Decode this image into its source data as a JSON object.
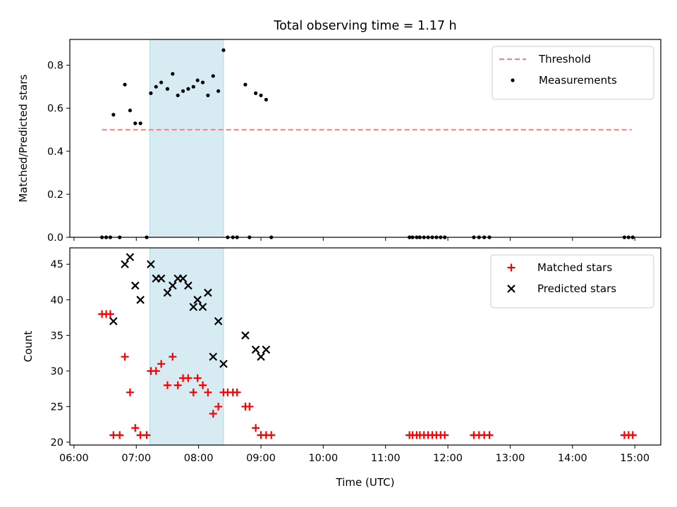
{
  "chart_data": {
    "title": "Total observing time = 1.17 h",
    "xlabel": "Time (UTC)",
    "xlim": [
      "05:56",
      "15:25"
    ],
    "xticks": [
      "06:00",
      "07:00",
      "08:00",
      "09:00",
      "10:00",
      "11:00",
      "12:00",
      "13:00",
      "14:00",
      "15:00"
    ],
    "shaded_span": {
      "x0": "07:13",
      "x1": "08:24",
      "color": "#add8e6"
    },
    "panels": [
      {
        "type": "scatter",
        "ylabel": "Matched/Predicted stars",
        "ylim": [
          0,
          0.92
        ],
        "yticks": [
          "0.0",
          "0.2",
          "0.4",
          "0.6",
          "0.8"
        ],
        "legend_position": "top-right",
        "threshold": {
          "name": "Threshold",
          "value": 0.5,
          "x_start": "06:27",
          "x_end": "14:57",
          "color": "#ff7f7f",
          "style": "dashed"
        },
        "series": [
          {
            "name": "Measurements",
            "color": "#000000",
            "marker": "dot",
            "points": [
              [
                "06:27",
                0
              ],
              [
                "06:31",
                0
              ],
              [
                "06:35",
                0
              ],
              [
                "06:38",
                0.57
              ],
              [
                "06:44",
                0
              ],
              [
                "06:49",
                0.71
              ],
              [
                "06:54",
                0.59
              ],
              [
                "06:59",
                0.53
              ],
              [
                "07:04",
                0.53
              ],
              [
                "07:10",
                0
              ],
              [
                "07:14",
                0.67
              ],
              [
                "07:19",
                0.7
              ],
              [
                "07:24",
                0.72
              ],
              [
                "07:30",
                0.69
              ],
              [
                "07:35",
                0.76
              ],
              [
                "07:40",
                0.66
              ],
              [
                "07:45",
                0.68
              ],
              [
                "07:50",
                0.69
              ],
              [
                "07:55",
                0.7
              ],
              [
                "07:59",
                0.73
              ],
              [
                "08:04",
                0.72
              ],
              [
                "08:09",
                0.66
              ],
              [
                "08:14",
                0.75
              ],
              [
                "08:19",
                0.68
              ],
              [
                "08:24",
                0.87
              ],
              [
                "08:28",
                0
              ],
              [
                "08:33",
                0
              ],
              [
                "08:37",
                0
              ],
              [
                "08:45",
                0.71
              ],
              [
                "08:49",
                0
              ],
              [
                "08:55",
                0.67
              ],
              [
                "09:00",
                0.66
              ],
              [
                "09:05",
                0.64
              ],
              [
                "09:10",
                0
              ],
              [
                "11:23",
                0
              ],
              [
                "11:26",
                0
              ],
              [
                "11:30",
                0
              ],
              [
                "11:33",
                0
              ],
              [
                "11:37",
                0
              ],
              [
                "11:41",
                0
              ],
              [
                "11:45",
                0
              ],
              [
                "11:49",
                0
              ],
              [
                "11:53",
                0
              ],
              [
                "11:57",
                0
              ],
              [
                "12:25",
                0
              ],
              [
                "12:30",
                0
              ],
              [
                "12:35",
                0
              ],
              [
                "12:40",
                0
              ],
              [
                "14:50",
                0
              ],
              [
                "14:54",
                0
              ],
              [
                "14:58",
                0
              ]
            ]
          }
        ]
      },
      {
        "type": "scatter",
        "ylabel": "Count",
        "ylim": [
          19.6,
          47.3
        ],
        "yticks": [
          "20",
          "25",
          "30",
          "35",
          "40",
          "45"
        ],
        "legend_position": "top-right",
        "series": [
          {
            "name": "Matched stars",
            "color": "#ff0000",
            "marker": "plus",
            "points": [
              [
                "06:27",
                38
              ],
              [
                "06:31",
                38
              ],
              [
                "06:35",
                38
              ],
              [
                "06:38",
                21
              ],
              [
                "06:44",
                21
              ],
              [
                "06:49",
                32
              ],
              [
                "06:54",
                27
              ],
              [
                "06:59",
                22
              ],
              [
                "07:04",
                21
              ],
              [
                "07:10",
                21
              ],
              [
                "07:14",
                30
              ],
              [
                "07:19",
                30
              ],
              [
                "07:24",
                31
              ],
              [
                "07:30",
                28
              ],
              [
                "07:35",
                32
              ],
              [
                "07:40",
                28
              ],
              [
                "07:45",
                29
              ],
              [
                "07:50",
                29
              ],
              [
                "07:55",
                27
              ],
              [
                "07:59",
                29
              ],
              [
                "08:04",
                28
              ],
              [
                "08:09",
                27
              ],
              [
                "08:14",
                24
              ],
              [
                "08:19",
                25
              ],
              [
                "08:24",
                27
              ],
              [
                "08:28",
                27
              ],
              [
                "08:33",
                27
              ],
              [
                "08:37",
                27
              ],
              [
                "08:45",
                25
              ],
              [
                "08:49",
                25
              ],
              [
                "08:55",
                22
              ],
              [
                "09:00",
                21
              ],
              [
                "09:05",
                21
              ],
              [
                "09:10",
                21
              ],
              [
                "11:23",
                21
              ],
              [
                "11:26",
                21
              ],
              [
                "11:30",
                21
              ],
              [
                "11:33",
                21
              ],
              [
                "11:37",
                21
              ],
              [
                "11:41",
                21
              ],
              [
                "11:45",
                21
              ],
              [
                "11:49",
                21
              ],
              [
                "11:53",
                21
              ],
              [
                "11:57",
                21
              ],
              [
                "12:25",
                21
              ],
              [
                "12:30",
                21
              ],
              [
                "12:35",
                21
              ],
              [
                "12:40",
                21
              ],
              [
                "14:50",
                21
              ],
              [
                "14:54",
                21
              ],
              [
                "14:58",
                21
              ]
            ]
          },
          {
            "name": "Predicted stars",
            "color": "#000000",
            "marker": "x",
            "points": [
              [
                "06:38",
                37
              ],
              [
                "06:49",
                45
              ],
              [
                "06:54",
                46
              ],
              [
                "06:59",
                42
              ],
              [
                "07:04",
                40
              ],
              [
                "07:14",
                45
              ],
              [
                "07:19",
                43
              ],
              [
                "07:24",
                43
              ],
              [
                "07:30",
                41
              ],
              [
                "07:35",
                42
              ],
              [
                "07:40",
                43
              ],
              [
                "07:45",
                43
              ],
              [
                "07:50",
                42
              ],
              [
                "07:55",
                39
              ],
              [
                "07:59",
                40
              ],
              [
                "08:04",
                39
              ],
              [
                "08:09",
                41
              ],
              [
                "08:14",
                32
              ],
              [
                "08:19",
                37
              ],
              [
                "08:24",
                31
              ],
              [
                "08:45",
                35
              ],
              [
                "08:55",
                33
              ],
              [
                "09:00",
                32
              ],
              [
                "09:05",
                33
              ]
            ]
          }
        ]
      }
    ]
  }
}
